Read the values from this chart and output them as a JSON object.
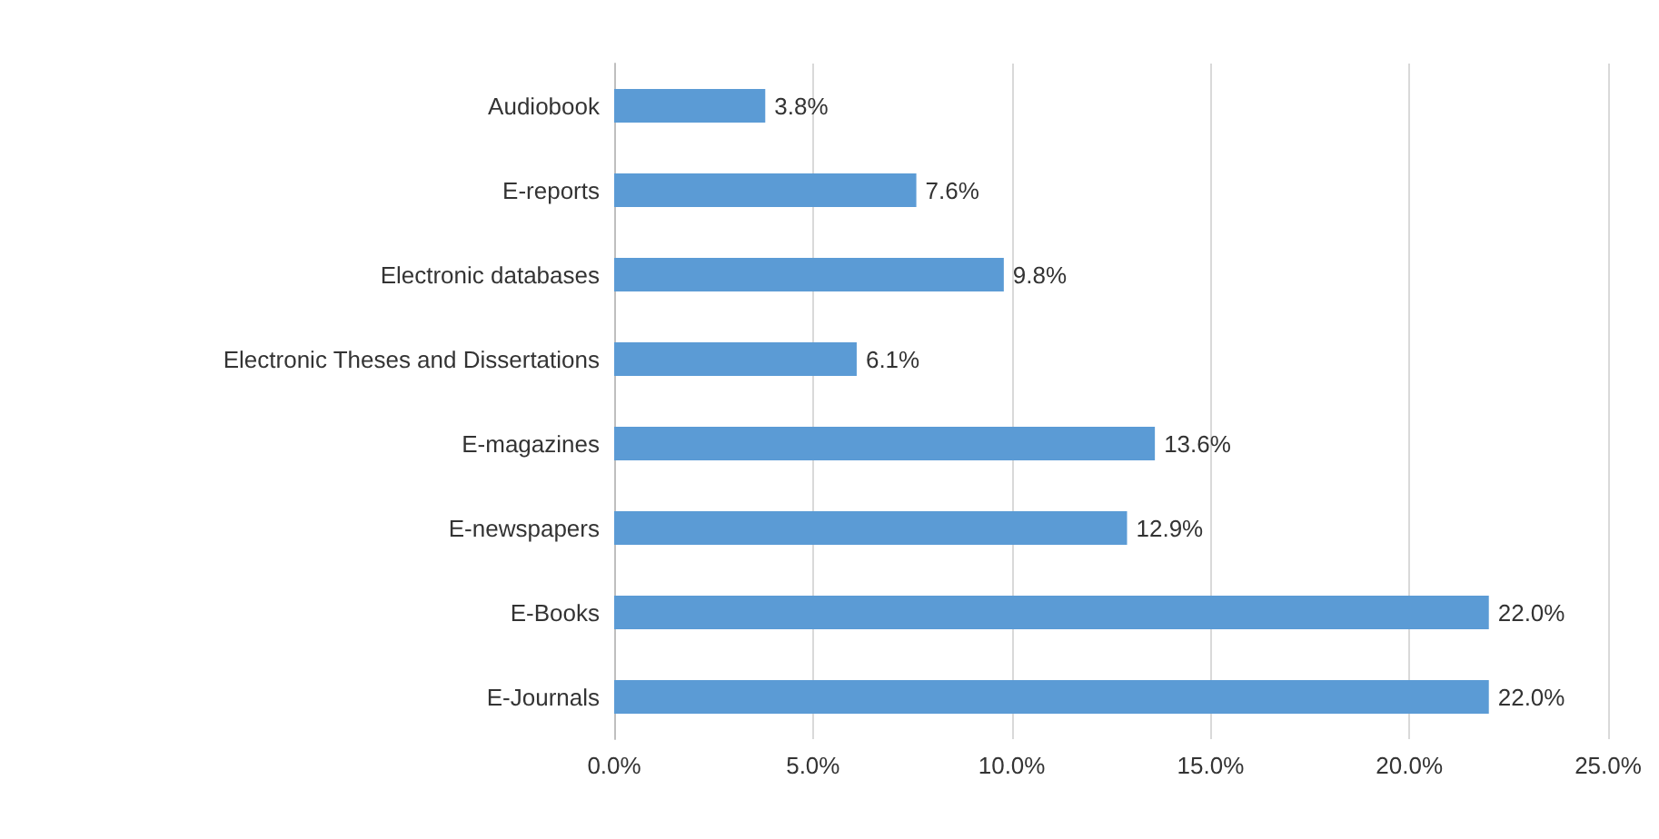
{
  "chart_data": {
    "type": "bar",
    "orientation": "horizontal",
    "categories": [
      "Audiobook",
      "E-reports",
      "Electronic databases",
      "Electronic Theses and Dissertations",
      "E-magazines",
      "E-newspapers",
      "E-Books",
      "E-Journals"
    ],
    "values": [
      3.8,
      7.6,
      9.8,
      6.1,
      13.6,
      12.9,
      22.0,
      22.0
    ],
    "value_labels": [
      "3.8%",
      "7.6%",
      "9.8%",
      "6.1%",
      "13.6%",
      "12.9%",
      "22.0%",
      "22.0%"
    ],
    "color": "#5b9bd5",
    "xlim": [
      0,
      25
    ],
    "xticks": [
      {
        "value": 0,
        "label": "0.0%"
      },
      {
        "value": 5,
        "label": "5.0%"
      },
      {
        "value": 10,
        "label": "10.0%"
      },
      {
        "value": 15,
        "label": "15.0%"
      },
      {
        "value": 20,
        "label": "20.0%"
      },
      {
        "value": 25,
        "label": "25.0%"
      }
    ],
    "grid": "x"
  }
}
